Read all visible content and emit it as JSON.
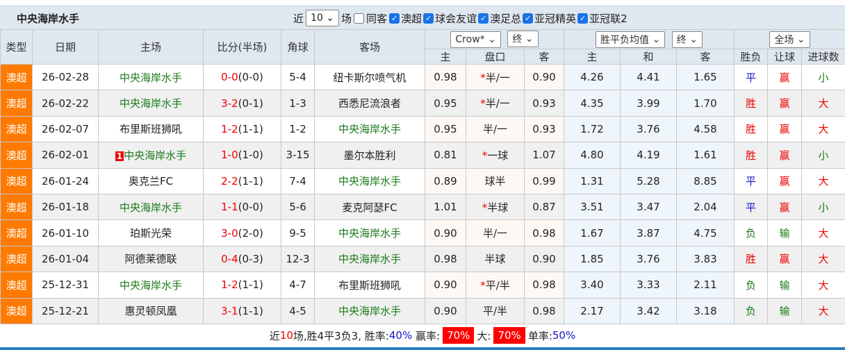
{
  "title": "中央海岸水手",
  "filters": {
    "near_label": "近",
    "count": "10",
    "games_label": "场",
    "same_guest": "同客",
    "leagues": [
      "澳超",
      "球会友谊",
      "澳足总",
      "亚冠精英",
      "亚冠联2"
    ]
  },
  "headers": {
    "type": "类型",
    "date": "日期",
    "home": "主场",
    "score": "比分(半场)",
    "corner": "角球",
    "away": "客场",
    "company": "Crow*",
    "final1": "终",
    "odds_type": "胜平负均值",
    "final2": "终",
    "scope": "全场",
    "sub": [
      "主",
      "盘口",
      "客",
      "主",
      "和",
      "客",
      "胜负",
      "让球",
      "进球数"
    ]
  },
  "colors": {
    "type_bg": "#ff7a00",
    "team_green": "#1a7a1a",
    "red": "#e00000",
    "blue": "#1515c8"
  },
  "rows": [
    {
      "type": "澳超",
      "date": "26-02-28",
      "home": "中央海岸水手",
      "home_hl": true,
      "badge": "",
      "score": "0-0",
      "half": "(0-0)",
      "corner": "5-4",
      "away": "纽卡斯尔喷气机",
      "away_hl": false,
      "h": "0.98",
      "star": "*",
      "line": "半/一",
      "a": "0.90",
      "o1": "4.26",
      "o2": "4.41",
      "o3": "1.65",
      "r1": "平",
      "r2": "赢",
      "r3": "小"
    },
    {
      "type": "澳超",
      "date": "26-02-22",
      "home": "中央海岸水手",
      "home_hl": true,
      "badge": "",
      "score": "3-2",
      "half": "(0-1)",
      "corner": "1-3",
      "away": "西悉尼流浪者",
      "away_hl": false,
      "h": "0.95",
      "star": "*",
      "line": "半/一",
      "a": "0.93",
      "o1": "4.35",
      "o2": "3.99",
      "o3": "1.70",
      "r1": "胜",
      "r2": "赢",
      "r3": "大"
    },
    {
      "type": "澳超",
      "date": "26-02-07",
      "home": "布里斯班狮吼",
      "home_hl": false,
      "badge": "",
      "score": "1-2",
      "half": "(1-1)",
      "corner": "1-2",
      "away": "中央海岸水手",
      "away_hl": true,
      "h": "0.95",
      "star": "",
      "line": "半/一",
      "a": "0.93",
      "o1": "1.72",
      "o2": "3.76",
      "o3": "4.58",
      "r1": "胜",
      "r2": "赢",
      "r3": "大"
    },
    {
      "type": "澳超",
      "date": "26-02-01",
      "home": "中央海岸水手",
      "home_hl": true,
      "badge": "1",
      "score": "1-0",
      "half": "(1-0)",
      "corner": "3-15",
      "away": "墨尔本胜利",
      "away_hl": false,
      "h": "0.81",
      "star": "*",
      "line": "一球",
      "a": "1.07",
      "o1": "4.80",
      "o2": "4.19",
      "o3": "1.61",
      "r1": "胜",
      "r2": "赢",
      "r3": "小"
    },
    {
      "type": "澳超",
      "date": "26-01-24",
      "home": "奥克兰FC",
      "home_hl": false,
      "badge": "",
      "score": "2-2",
      "half": "(1-1)",
      "corner": "7-4",
      "away": "中央海岸水手",
      "away_hl": true,
      "h": "0.89",
      "star": "",
      "line": "球半",
      "a": "0.99",
      "o1": "1.31",
      "o2": "5.28",
      "o3": "8.85",
      "r1": "平",
      "r2": "赢",
      "r3": "大"
    },
    {
      "type": "澳超",
      "date": "26-01-18",
      "home": "中央海岸水手",
      "home_hl": true,
      "badge": "",
      "score": "1-1",
      "half": "(0-0)",
      "corner": "5-6",
      "away": "麦克阿瑟FC",
      "away_hl": false,
      "h": "1.01",
      "star": "*",
      "line": "半球",
      "a": "0.87",
      "o1": "3.51",
      "o2": "3.47",
      "o3": "2.04",
      "r1": "平",
      "r2": "赢",
      "r3": "小"
    },
    {
      "type": "澳超",
      "date": "26-01-10",
      "home": "珀斯光荣",
      "home_hl": false,
      "badge": "",
      "score": "3-0",
      "half": "(2-0)",
      "corner": "9-5",
      "away": "中央海岸水手",
      "away_hl": true,
      "h": "0.90",
      "star": "",
      "line": "半/一",
      "a": "0.98",
      "o1": "1.67",
      "o2": "3.87",
      "o3": "4.75",
      "r1": "负",
      "r2": "输",
      "r3": "大"
    },
    {
      "type": "澳超",
      "date": "26-01-04",
      "home": "阿德莱德联",
      "home_hl": false,
      "badge": "",
      "score": "0-4",
      "half": "(0-3)",
      "corner": "12-3",
      "away": "中央海岸水手",
      "away_hl": true,
      "h": "0.98",
      "star": "",
      "line": "半球",
      "a": "0.90",
      "o1": "1.85",
      "o2": "3.76",
      "o3": "3.83",
      "r1": "胜",
      "r2": "赢",
      "r3": "大"
    },
    {
      "type": "澳超",
      "date": "25-12-31",
      "home": "中央海岸水手",
      "home_hl": true,
      "badge": "",
      "score": "1-2",
      "half": "(1-1)",
      "corner": "4-7",
      "away": "布里斯班狮吼",
      "away_hl": false,
      "h": "0.90",
      "star": "*",
      "line": "平/半",
      "a": "0.98",
      "o1": "3.40",
      "o2": "3.33",
      "o3": "2.11",
      "r1": "负",
      "r2": "输",
      "r3": "大"
    },
    {
      "type": "澳超",
      "date": "25-12-21",
      "home": "惠灵顿凤凰",
      "home_hl": false,
      "badge": "",
      "score": "3-1",
      "half": "(1-1)",
      "corner": "4-5",
      "away": "中央海岸水手",
      "away_hl": true,
      "h": "0.90",
      "star": "",
      "line": "平/半",
      "a": "0.98",
      "o1": "2.17",
      "o2": "3.42",
      "o3": "3.18",
      "r1": "负",
      "r2": "输",
      "r3": "大"
    }
  ],
  "summary": {
    "p1": "近",
    "n": "10",
    "p2": "场,胜4平3负3, 胜率:",
    "win_rate": "40%",
    "p3": "赢率:",
    "cover_rate": "70%",
    "p4": "大:",
    "over_rate": "70%",
    "p5": "单率:",
    "odd_rate": "50%"
  }
}
